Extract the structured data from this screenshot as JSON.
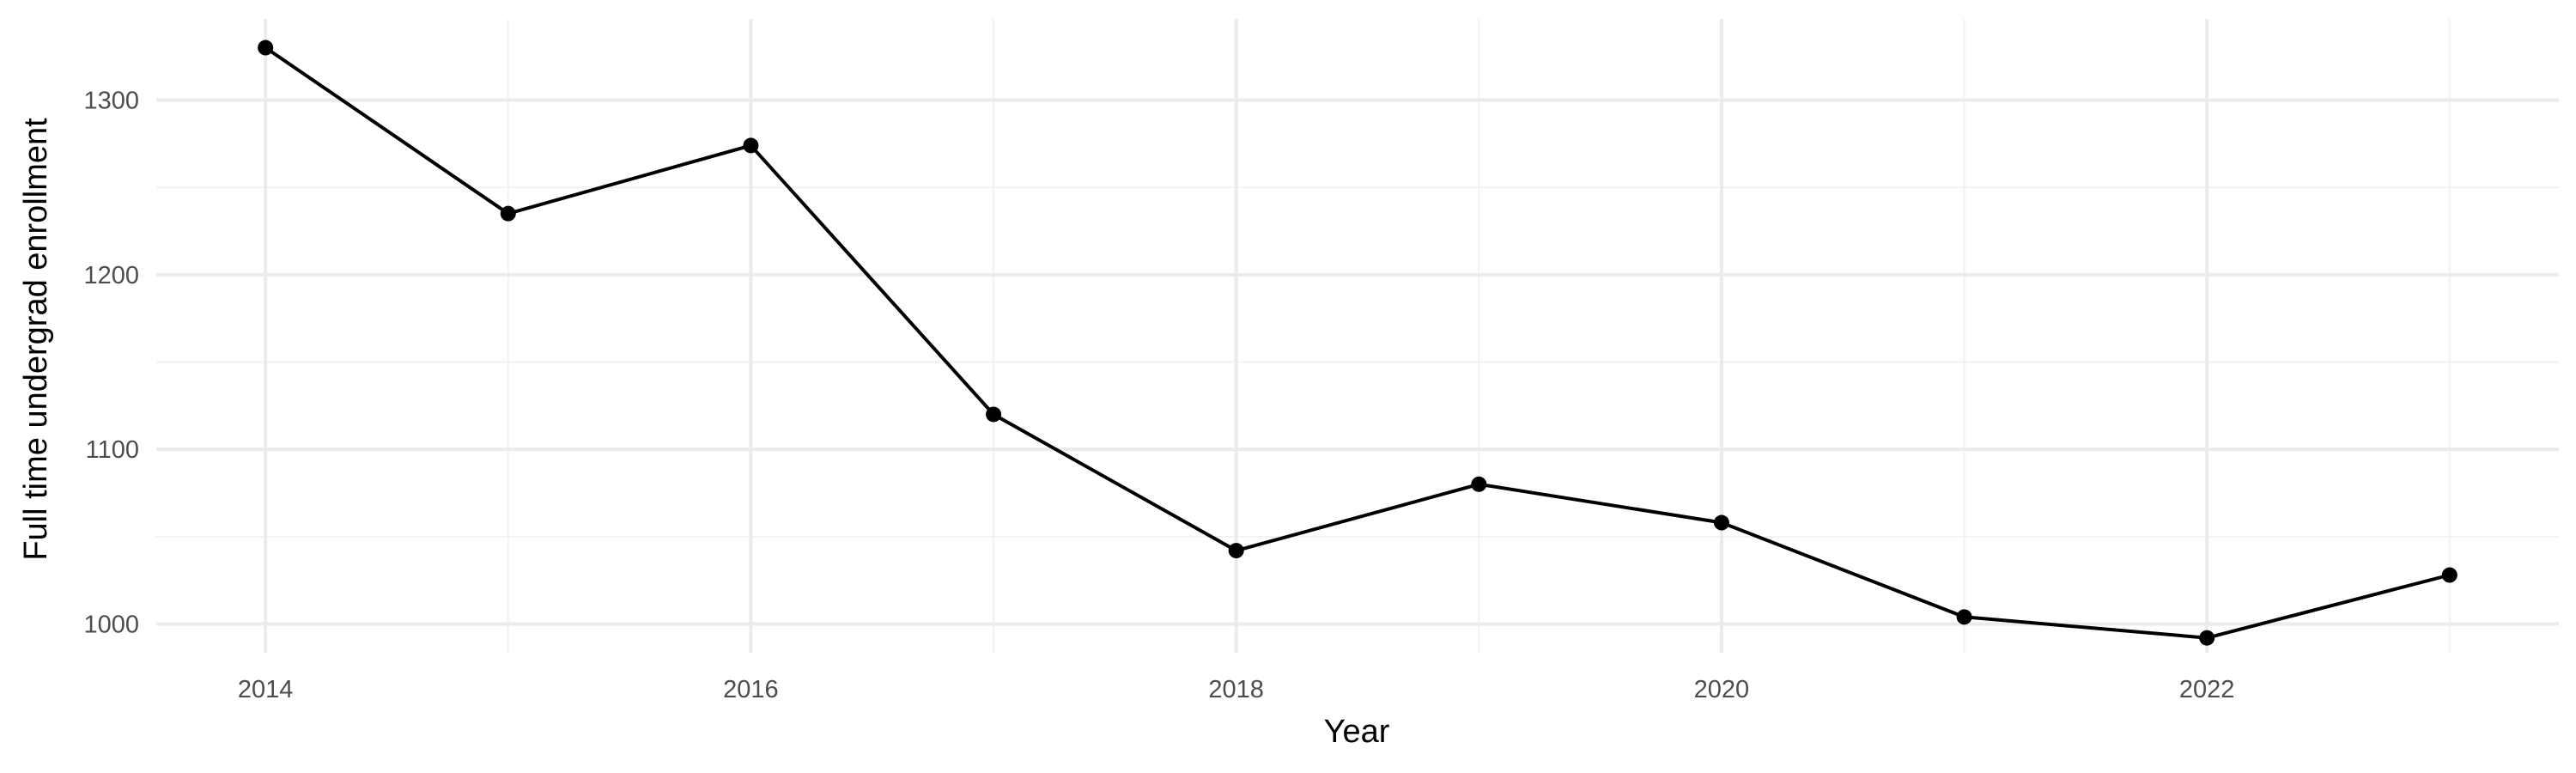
{
  "chart_data": {
    "type": "line",
    "title": "",
    "xlabel": "Year",
    "ylabel": "Full time undergrad enrollment",
    "x": [
      2014,
      2015,
      2016,
      2017,
      2018,
      2019,
      2020,
      2021,
      2022,
      2023
    ],
    "series": [
      {
        "values": [
          1330,
          1235,
          1274,
          1120,
          1042,
          1080,
          1058,
          1004,
          992,
          1028
        ],
        "color": "#000000"
      }
    ],
    "xlim": [
      2013.55,
      2023.45
    ],
    "ylim": [
      983.5,
      1346.5
    ],
    "x_ticks": [
      2014,
      2016,
      2018,
      2020,
      2022
    ],
    "x_tick_labels": [
      "2014",
      "2016",
      "2018",
      "2020",
      "2022"
    ],
    "y_ticks": [
      1000,
      1100,
      1200,
      1300
    ],
    "y_tick_labels": [
      "1000",
      "1100",
      "1200",
      "1300"
    ],
    "x_minor_ticks": [
      2015,
      2017,
      2019,
      2021,
      2023
    ],
    "y_minor_ticks": [
      1050,
      1150,
      1250
    ],
    "grid": true,
    "legend": "none"
  }
}
